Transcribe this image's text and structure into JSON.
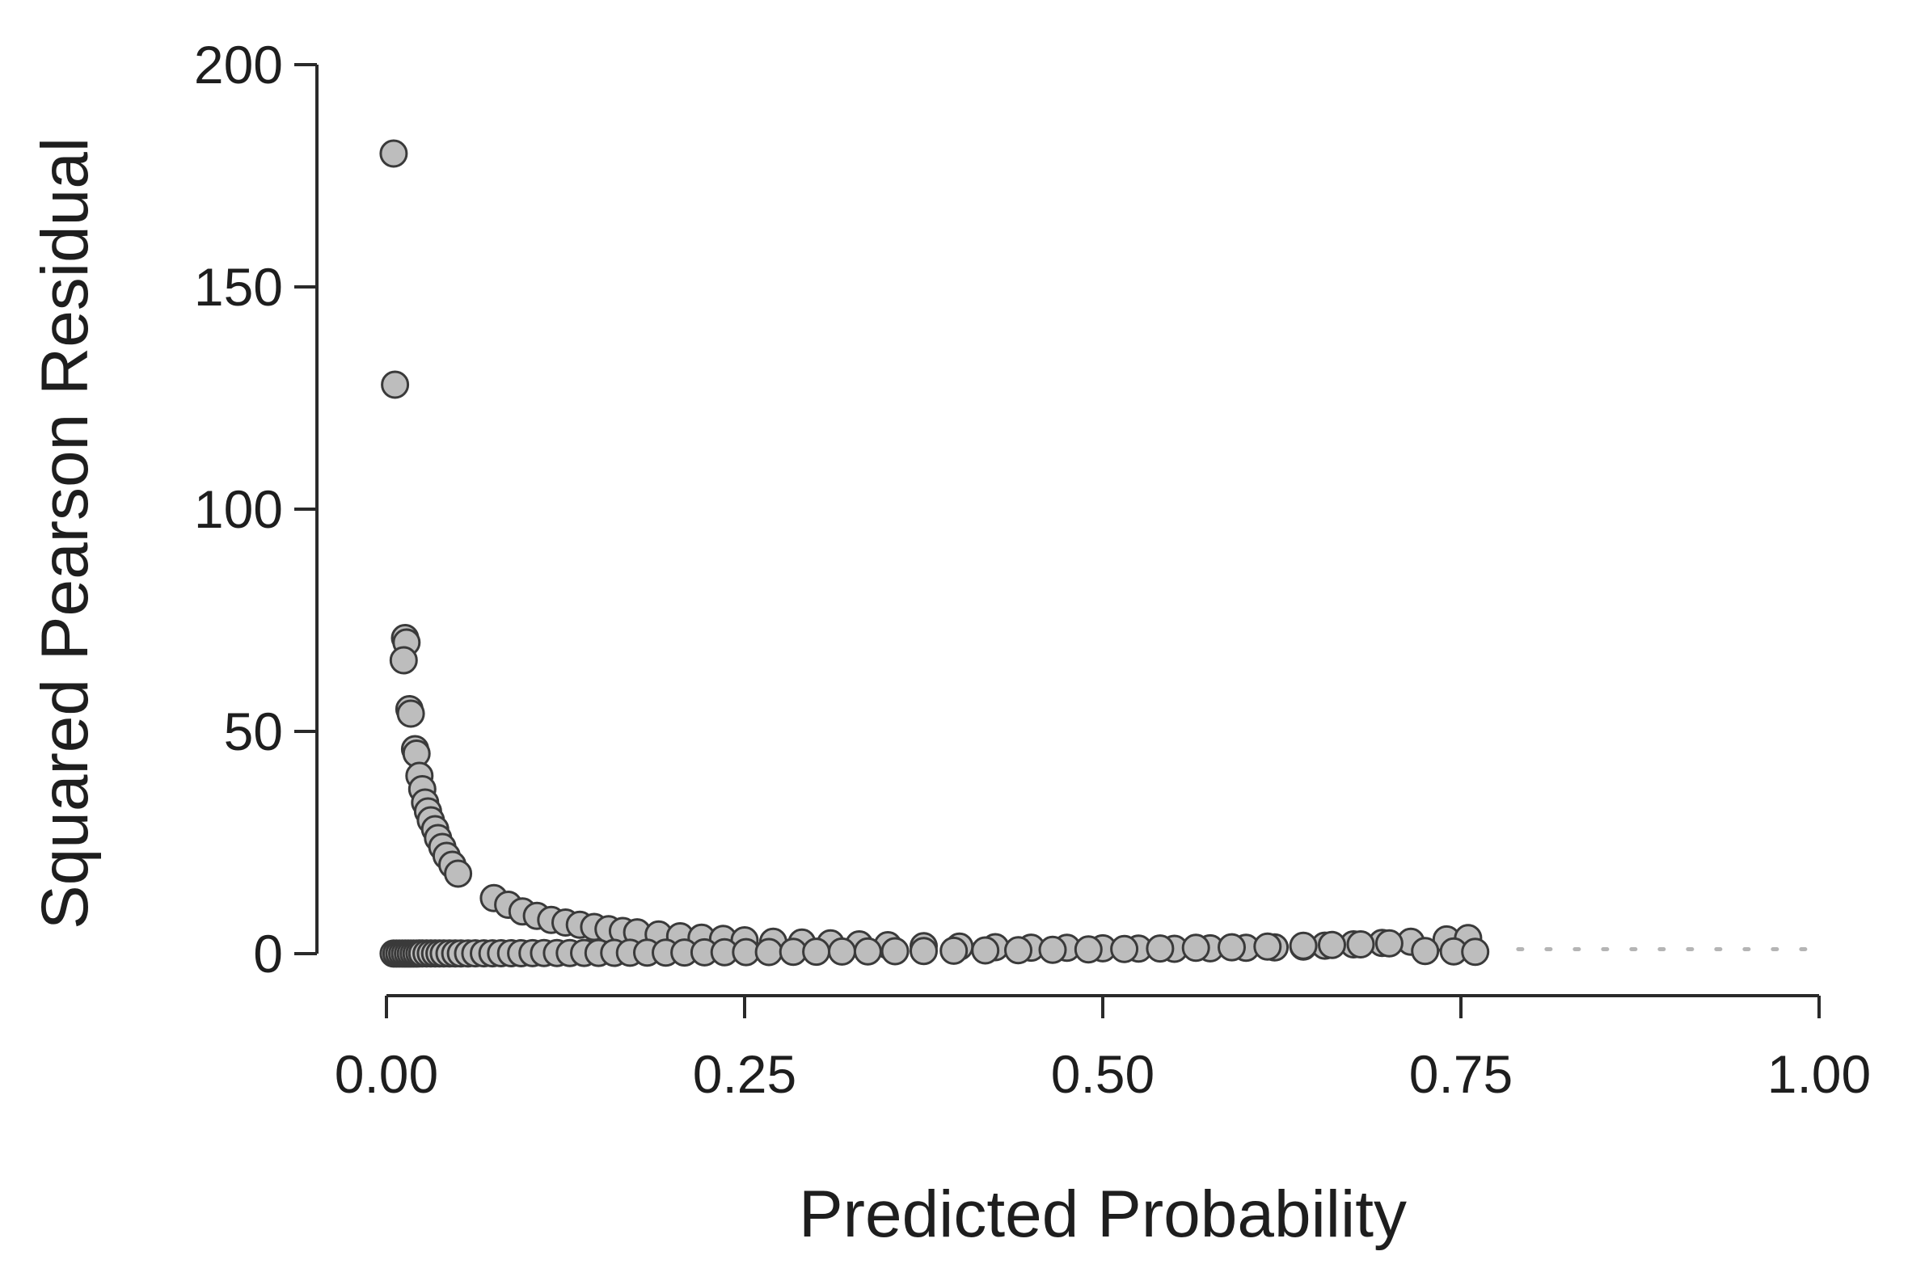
{
  "chart_data": {
    "type": "scatter",
    "xlabel": "Predicted Probability",
    "ylabel": "Squared Pearson Residual",
    "xlim": [
      0,
      1
    ],
    "ylim": [
      0,
      200
    ],
    "x_ticks": [
      0,
      0.25,
      0.5,
      0.75,
      1.0
    ],
    "x_tick_labels": [
      "0.00",
      "0.25",
      "0.50",
      "0.75",
      "1.00"
    ],
    "y_ticks": [
      0,
      50,
      100,
      150,
      200
    ],
    "y_tick_labels": [
      "0",
      "50",
      "100",
      "150",
      "200"
    ],
    "reference_line": {
      "y": 1,
      "style": "dotted",
      "color": "#b5b5b5"
    },
    "point_fill": "#bdbdbd",
    "point_stroke": "#3a3a3a",
    "grid": false,
    "legend": "none",
    "points": [
      [
        0.005,
        180
      ],
      [
        0.006,
        128
      ],
      [
        0.013,
        71
      ],
      [
        0.014,
        70
      ],
      [
        0.012,
        66
      ],
      [
        0.016,
        55
      ],
      [
        0.017,
        54
      ],
      [
        0.02,
        46
      ],
      [
        0.021,
        45
      ],
      [
        0.023,
        40
      ],
      [
        0.025,
        37
      ],
      [
        0.027,
        34
      ],
      [
        0.029,
        32
      ],
      [
        0.031,
        30
      ],
      [
        0.034,
        28
      ],
      [
        0.036,
        26
      ],
      [
        0.039,
        24
      ],
      [
        0.042,
        22
      ],
      [
        0.046,
        20
      ],
      [
        0.05,
        18
      ],
      [
        0.075,
        12.5
      ],
      [
        0.085,
        11
      ],
      [
        0.095,
        9.5
      ],
      [
        0.105,
        8.5
      ],
      [
        0.115,
        7.6
      ],
      [
        0.125,
        7
      ],
      [
        0.135,
        6.5
      ],
      [
        0.145,
        6
      ],
      [
        0.155,
        5.5
      ],
      [
        0.165,
        5.1
      ],
      [
        0.175,
        4.8
      ],
      [
        0.19,
        4.3
      ],
      [
        0.205,
        3.9
      ],
      [
        0.22,
        3.6
      ],
      [
        0.235,
        3.3
      ],
      [
        0.25,
        3.0
      ],
      [
        0.27,
        2.7
      ],
      [
        0.29,
        2.5
      ],
      [
        0.31,
        2.3
      ],
      [
        0.33,
        2.1
      ],
      [
        0.35,
        1.9
      ],
      [
        0.375,
        1.7
      ],
      [
        0.4,
        1.6
      ],
      [
        0.425,
        1.45
      ],
      [
        0.45,
        1.35
      ],
      [
        0.475,
        1.3
      ],
      [
        0.5,
        1.2
      ],
      [
        0.525,
        1.15
      ],
      [
        0.55,
        1.1
      ],
      [
        0.575,
        1.2
      ],
      [
        0.6,
        1.3
      ],
      [
        0.62,
        1.4
      ],
      [
        0.64,
        1.6
      ],
      [
        0.655,
        1.8
      ],
      [
        0.675,
        2.1
      ],
      [
        0.695,
        2.4
      ],
      [
        0.715,
        2.7
      ],
      [
        0.74,
        3.2
      ],
      [
        0.755,
        3.5
      ],
      [
        0.005,
        0.01
      ],
      [
        0.007,
        0.01
      ],
      [
        0.009,
        0.01
      ],
      [
        0.011,
        0.02
      ],
      [
        0.013,
        0.02
      ],
      [
        0.015,
        0.02
      ],
      [
        0.017,
        0.02
      ],
      [
        0.019,
        0.02
      ],
      [
        0.021,
        0.02
      ],
      [
        0.023,
        0.03
      ],
      [
        0.025,
        0.03
      ],
      [
        0.028,
        0.03
      ],
      [
        0.031,
        0.03
      ],
      [
        0.034,
        0.04
      ],
      [
        0.037,
        0.04
      ],
      [
        0.04,
        0.04
      ],
      [
        0.044,
        0.05
      ],
      [
        0.048,
        0.05
      ],
      [
        0.052,
        0.06
      ],
      [
        0.057,
        0.06
      ],
      [
        0.062,
        0.07
      ],
      [
        0.068,
        0.07
      ],
      [
        0.074,
        0.08
      ],
      [
        0.08,
        0.09
      ],
      [
        0.087,
        0.1
      ],
      [
        0.094,
        0.1
      ],
      [
        0.102,
        0.11
      ],
      [
        0.11,
        0.12
      ],
      [
        0.119,
        0.14
      ],
      [
        0.128,
        0.15
      ],
      [
        0.138,
        0.16
      ],
      [
        0.148,
        0.17
      ],
      [
        0.159,
        0.19
      ],
      [
        0.17,
        0.2
      ],
      [
        0.182,
        0.22
      ],
      [
        0.195,
        0.24
      ],
      [
        0.208,
        0.26
      ],
      [
        0.222,
        0.29
      ],
      [
        0.236,
        0.31
      ],
      [
        0.251,
        0.34
      ],
      [
        0.267,
        0.36
      ],
      [
        0.284,
        0.4
      ],
      [
        0.3,
        0.43
      ],
      [
        0.318,
        0.47
      ],
      [
        0.336,
        0.51
      ],
      [
        0.355,
        0.55
      ],
      [
        0.375,
        0.6
      ],
      [
        0.396,
        0.66
      ],
      [
        0.418,
        0.72
      ],
      [
        0.441,
        0.79
      ],
      [
        0.465,
        0.87
      ],
      [
        0.49,
        0.96
      ],
      [
        0.515,
        1.06
      ],
      [
        0.54,
        1.17
      ],
      [
        0.565,
        1.3
      ],
      [
        0.59,
        1.44
      ],
      [
        0.615,
        1.6
      ],
      [
        0.64,
        1.78
      ],
      [
        0.66,
        1.94
      ],
      [
        0.68,
        2.1
      ],
      [
        0.7,
        2.3
      ],
      [
        0.725,
        0.6
      ],
      [
        0.745,
        0.5
      ],
      [
        0.76,
        0.4
      ]
    ]
  }
}
